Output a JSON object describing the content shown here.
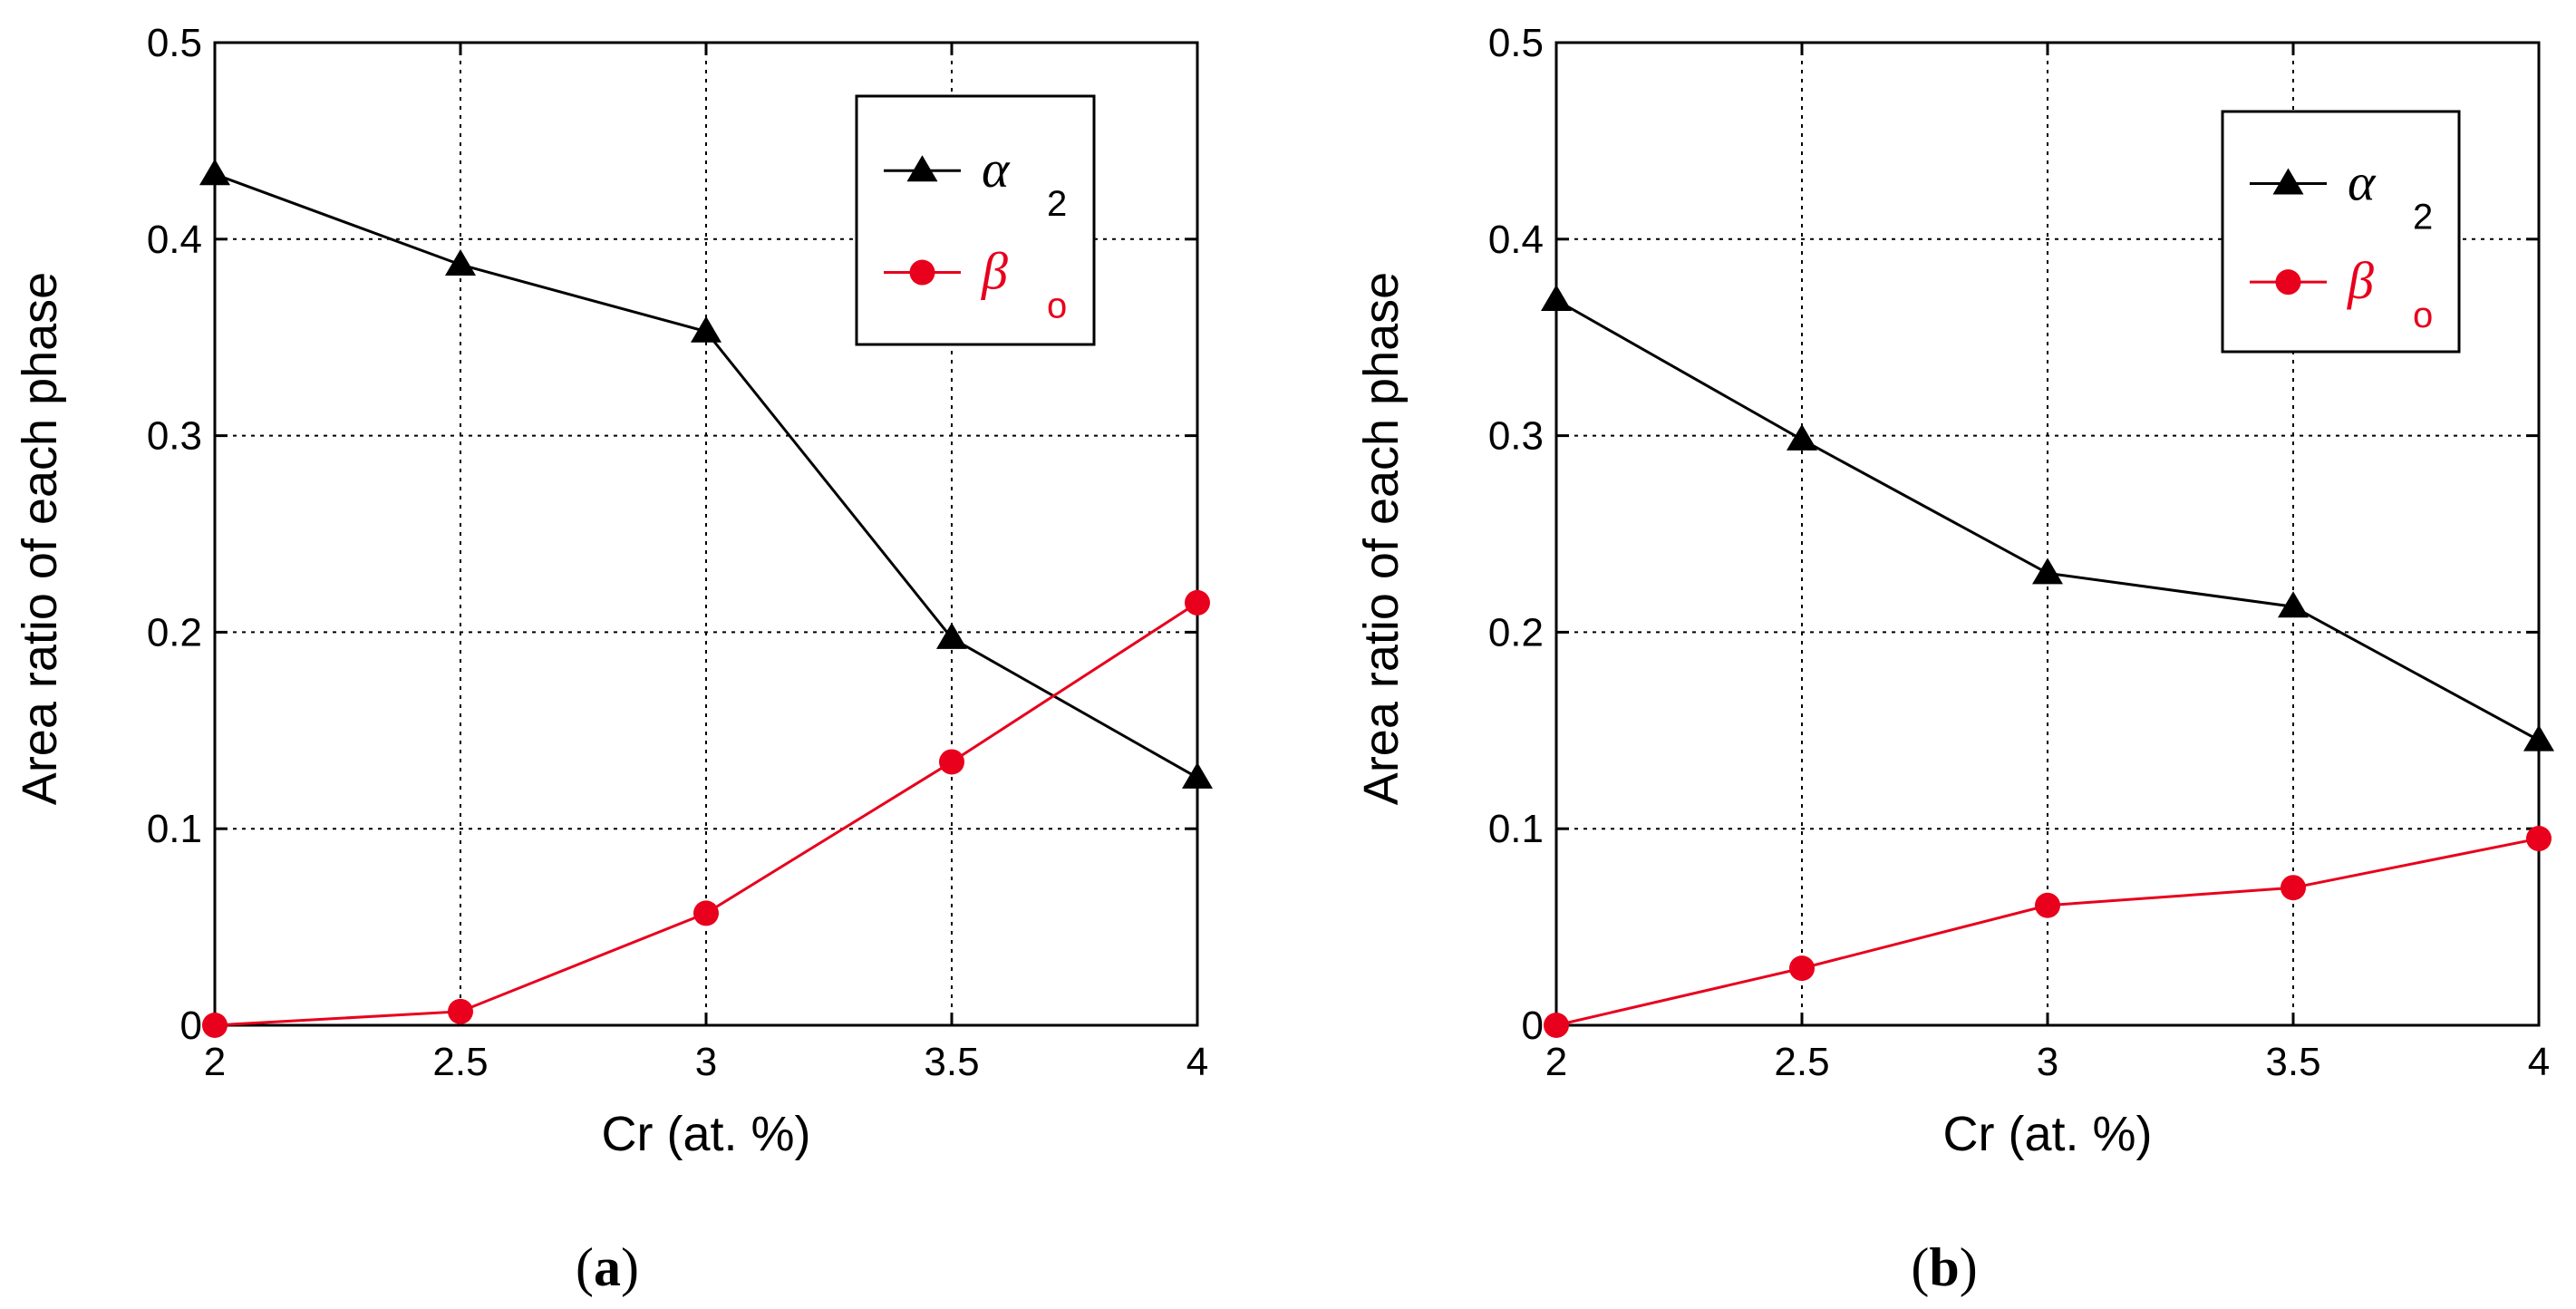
{
  "chart_data": [
    {
      "type": "line",
      "panel_label": "a",
      "xlabel": "Cr (at. %)",
      "ylabel": "Area ratio of each phase",
      "xlim": [
        2,
        4
      ],
      "ylim": [
        0,
        0.5
      ],
      "xticks": [
        2,
        2.5,
        3,
        3.5,
        4
      ],
      "xtick_labels": [
        "2",
        "2.5",
        "3",
        "3.5",
        "4"
      ],
      "yticks": [
        0,
        0.1,
        0.2,
        0.3,
        0.4,
        0.5
      ],
      "ytick_labels": [
        "0",
        "0.1",
        "0.2",
        "0.3",
        "0.4",
        "0.5"
      ],
      "grid": true,
      "legend_position": "top-right",
      "x": [
        2,
        2.5,
        3,
        3.5,
        4
      ],
      "series": [
        {
          "name": "α2",
          "symbol": "α",
          "subscript": "2",
          "marker": "triangle",
          "color": "#000000",
          "values": [
            0.433,
            0.387,
            0.353,
            0.197,
            0.126
          ]
        },
        {
          "name": "βo",
          "symbol": "β",
          "subscript": "o",
          "marker": "circle",
          "color": "#e8001c",
          "values": [
            0.0,
            0.007,
            0.057,
            0.134,
            0.215
          ]
        }
      ]
    },
    {
      "type": "line",
      "panel_label": "b",
      "xlabel": "Cr (at. %)",
      "ylabel": "Area ratio of each phase",
      "xlim": [
        2,
        4
      ],
      "ylim": [
        0,
        0.5
      ],
      "xticks": [
        2,
        2.5,
        3,
        3.5,
        4
      ],
      "xtick_labels": [
        "2",
        "2.5",
        "3",
        "3.5",
        "4"
      ],
      "yticks": [
        0,
        0.1,
        0.2,
        0.3,
        0.4,
        0.5
      ],
      "ytick_labels": [
        "0",
        "0.1",
        "0.2",
        "0.3",
        "0.4",
        "0.5"
      ],
      "grid": true,
      "legend_position": "top-right",
      "x": [
        2,
        2.5,
        3,
        3.5,
        4
      ],
      "series": [
        {
          "name": "α2",
          "symbol": "α",
          "subscript": "2",
          "marker": "triangle",
          "color": "#000000",
          "values": [
            0.369,
            0.298,
            0.23,
            0.213,
            0.145
          ]
        },
        {
          "name": "βo",
          "symbol": "β",
          "subscript": "o",
          "marker": "circle",
          "color": "#e8001c",
          "values": [
            0.0,
            0.029,
            0.061,
            0.07,
            0.095
          ]
        }
      ]
    }
  ]
}
